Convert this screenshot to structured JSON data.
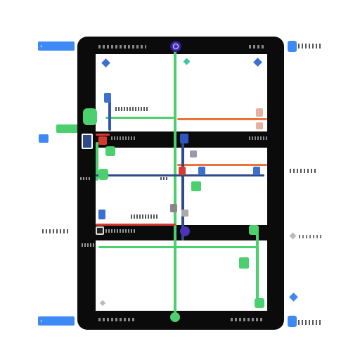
{
  "colors": {
    "frame": "#0b0b0b",
    "panel": "#ffffff",
    "green": "#4ccf6e",
    "orange": "#e8743c",
    "navy": "#2f4a8a",
    "red": "#d63a2e",
    "blue": "#3d8af7",
    "purple": "#4a33b8"
  },
  "icons": {
    "top_center": "target-icon",
    "bottom_center": "pin-icon",
    "left_chip": "tag-icon",
    "right_items": "pin-icon"
  }
}
